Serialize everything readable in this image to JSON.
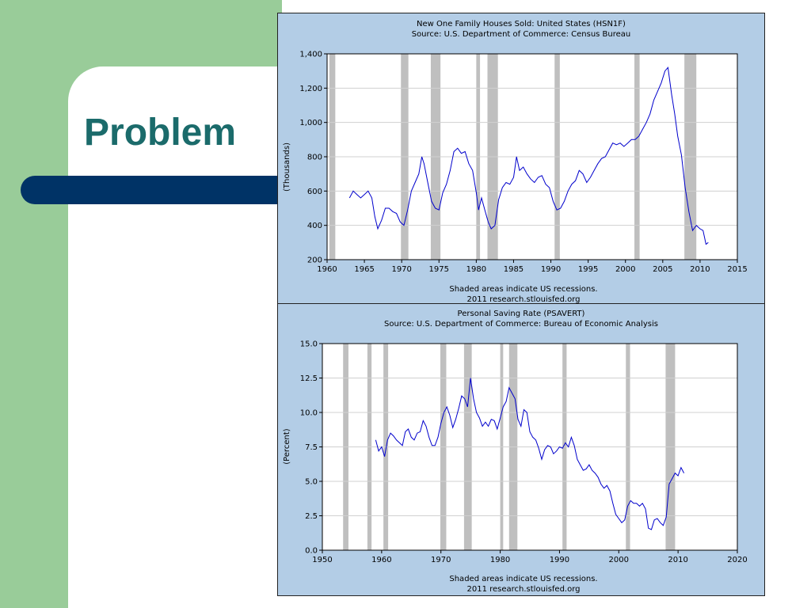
{
  "slide": {
    "title": "Problem"
  },
  "colors": {
    "left_band": "#99cc99",
    "accent_bar": "#003366",
    "title": "#1b6b6b",
    "chart_bg": "#b3cde6",
    "line": "#0000cc",
    "recession": "#bfbfbf"
  },
  "chart_data": [
    {
      "type": "line",
      "title": "New One Family Houses Sold: United States (HSN1F)",
      "subtitle": "Source: U.S. Department of Commerce: Census Bureau",
      "xlabel": "",
      "ylabel": "(Thousands)",
      "xlim": [
        1960,
        2015
      ],
      "ylim": [
        200,
        1400
      ],
      "xticks": [
        "1960",
        "1965",
        "1970",
        "1975",
        "1980",
        "1985",
        "1990",
        "1995",
        "2000",
        "2005",
        "2010",
        "2015"
      ],
      "yticks": [
        "200",
        "400",
        "600",
        "800",
        "1,000",
        "1,200",
        "1,400"
      ],
      "grid": true,
      "recessions": [
        [
          1960.3,
          1961.1
        ],
        [
          1969.9,
          1970.9
        ],
        [
          1973.9,
          1975.2
        ],
        [
          1980.0,
          1980.5
        ],
        [
          1981.5,
          1982.9
        ],
        [
          1990.5,
          1991.2
        ],
        [
          2001.2,
          2001.9
        ],
        [
          2007.9,
          2009.5
        ]
      ],
      "series": [
        {
          "values": [
            [
              1963.0,
              560
            ],
            [
              1963.5,
              600
            ],
            [
              1964.0,
              580
            ],
            [
              1964.5,
              560
            ],
            [
              1965.0,
              580
            ],
            [
              1965.5,
              600
            ],
            [
              1966.0,
              560
            ],
            [
              1966.4,
              450
            ],
            [
              1966.8,
              380
            ],
            [
              1967.3,
              430
            ],
            [
              1967.8,
              500
            ],
            [
              1968.3,
              500
            ],
            [
              1968.8,
              480
            ],
            [
              1969.3,
              470
            ],
            [
              1969.8,
              420
            ],
            [
              1970.3,
              400
            ],
            [
              1970.8,
              490
            ],
            [
              1971.3,
              600
            ],
            [
              1971.8,
              650
            ],
            [
              1972.3,
              700
            ],
            [
              1972.7,
              800
            ],
            [
              1973.0,
              760
            ],
            [
              1973.5,
              650
            ],
            [
              1974.0,
              540
            ],
            [
              1974.5,
              500
            ],
            [
              1975.0,
              490
            ],
            [
              1975.5,
              590
            ],
            [
              1976.0,
              640
            ],
            [
              1976.5,
              720
            ],
            [
              1977.0,
              830
            ],
            [
              1977.5,
              850
            ],
            [
              1978.0,
              820
            ],
            [
              1978.5,
              830
            ],
            [
              1979.0,
              760
            ],
            [
              1979.5,
              720
            ],
            [
              1980.0,
              590
            ],
            [
              1980.3,
              490
            ],
            [
              1980.7,
              560
            ],
            [
              1981.2,
              480
            ],
            [
              1981.6,
              420
            ],
            [
              1982.0,
              380
            ],
            [
              1982.5,
              400
            ],
            [
              1983.0,
              550
            ],
            [
              1983.5,
              620
            ],
            [
              1984.0,
              650
            ],
            [
              1984.5,
              640
            ],
            [
              1985.0,
              680
            ],
            [
              1985.4,
              800
            ],
            [
              1985.8,
              720
            ],
            [
              1986.3,
              740
            ],
            [
              1986.8,
              700
            ],
            [
              1987.3,
              670
            ],
            [
              1987.8,
              650
            ],
            [
              1988.3,
              680
            ],
            [
              1988.8,
              690
            ],
            [
              1989.3,
              640
            ],
            [
              1989.8,
              620
            ],
            [
              1990.3,
              540
            ],
            [
              1990.8,
              490
            ],
            [
              1991.3,
              500
            ],
            [
              1991.8,
              540
            ],
            [
              1992.3,
              600
            ],
            [
              1992.8,
              640
            ],
            [
              1993.3,
              660
            ],
            [
              1993.8,
              720
            ],
            [
              1994.3,
              700
            ],
            [
              1994.8,
              650
            ],
            [
              1995.3,
              680
            ],
            [
              1995.8,
              720
            ],
            [
              1996.3,
              760
            ],
            [
              1996.8,
              790
            ],
            [
              1997.3,
              800
            ],
            [
              1997.8,
              840
            ],
            [
              1998.3,
              880
            ],
            [
              1998.8,
              870
            ],
            [
              1999.3,
              880
            ],
            [
              1999.8,
              860
            ],
            [
              2000.3,
              880
            ],
            [
              2000.8,
              900
            ],
            [
              2001.3,
              900
            ],
            [
              2001.8,
              920
            ],
            [
              2002.3,
              960
            ],
            [
              2002.8,
              1000
            ],
            [
              2003.3,
              1050
            ],
            [
              2003.8,
              1130
            ],
            [
              2004.3,
              1180
            ],
            [
              2004.8,
              1230
            ],
            [
              2005.3,
              1300
            ],
            [
              2005.7,
              1320
            ],
            [
              2006.2,
              1160
            ],
            [
              2006.6,
              1050
            ],
            [
              2007.0,
              920
            ],
            [
              2007.5,
              810
            ],
            [
              2008.0,
              620
            ],
            [
              2008.5,
              480
            ],
            [
              2009.0,
              370
            ],
            [
              2009.5,
              400
            ],
            [
              2010.0,
              380
            ],
            [
              2010.4,
              370
            ],
            [
              2010.8,
              290
            ],
            [
              2011.1,
              300
            ]
          ]
        }
      ],
      "annotations": [
        "Shaded areas indicate US recessions.",
        "2011 research.stlouisfed.org"
      ]
    },
    {
      "type": "line",
      "title": "Personal Saving Rate (PSAVERT)",
      "subtitle": "Source: U.S. Department of Commerce: Bureau of Economic Analysis",
      "xlabel": "",
      "ylabel": "(Percent)",
      "xlim": [
        1950,
        2020
      ],
      "ylim": [
        0,
        15
      ],
      "xticks": [
        "1950",
        "1960",
        "1970",
        "1980",
        "1990",
        "2000",
        "2010",
        "2020"
      ],
      "yticks": [
        "0.0",
        "2.5",
        "5.0",
        "7.5",
        "10.0",
        "12.5",
        "15.0"
      ],
      "grid": true,
      "recessions": [
        [
          1953.5,
          1954.4
        ],
        [
          1957.6,
          1958.3
        ],
        [
          1960.3,
          1961.1
        ],
        [
          1969.9,
          1970.9
        ],
        [
          1973.9,
          1975.2
        ],
        [
          1980.0,
          1980.5
        ],
        [
          1981.5,
          1982.9
        ],
        [
          1990.5,
          1991.2
        ],
        [
          2001.2,
          2001.9
        ],
        [
          2007.9,
          2009.5
        ]
      ],
      "series": [
        {
          "values": [
            [
              1959.0,
              8.0
            ],
            [
              1959.5,
              7.2
            ],
            [
              1960.0,
              7.5
            ],
            [
              1960.5,
              6.8
            ],
            [
              1961.0,
              8.0
            ],
            [
              1961.5,
              8.5
            ],
            [
              1962.0,
              8.3
            ],
            [
              1962.5,
              8.0
            ],
            [
              1963.0,
              7.8
            ],
            [
              1963.5,
              7.6
            ],
            [
              1964.0,
              8.6
            ],
            [
              1964.5,
              8.8
            ],
            [
              1965.0,
              8.2
            ],
            [
              1965.5,
              8.0
            ],
            [
              1966.0,
              8.5
            ],
            [
              1966.5,
              8.6
            ],
            [
              1967.0,
              9.4
            ],
            [
              1967.5,
              9.0
            ],
            [
              1968.0,
              8.2
            ],
            [
              1968.5,
              7.6
            ],
            [
              1969.0,
              7.6
            ],
            [
              1969.5,
              8.2
            ],
            [
              1970.0,
              9.2
            ],
            [
              1970.5,
              10.0
            ],
            [
              1971.0,
              10.4
            ],
            [
              1971.5,
              9.8
            ],
            [
              1972.0,
              8.9
            ],
            [
              1972.5,
              9.5
            ],
            [
              1973.0,
              10.3
            ],
            [
              1973.5,
              11.2
            ],
            [
              1974.0,
              11.0
            ],
            [
              1974.5,
              10.4
            ],
            [
              1975.0,
              12.5
            ],
            [
              1975.5,
              11.0
            ],
            [
              1976.0,
              10.0
            ],
            [
              1976.5,
              9.6
            ],
            [
              1977.0,
              9.0
            ],
            [
              1977.5,
              9.3
            ],
            [
              1978.0,
              9.0
            ],
            [
              1978.5,
              9.5
            ],
            [
              1979.0,
              9.4
            ],
            [
              1979.5,
              8.8
            ],
            [
              1980.0,
              9.6
            ],
            [
              1980.5,
              10.4
            ],
            [
              1981.0,
              10.8
            ],
            [
              1981.5,
              11.8
            ],
            [
              1982.0,
              11.4
            ],
            [
              1982.5,
              11.0
            ],
            [
              1983.0,
              9.5
            ],
            [
              1983.5,
              9.0
            ],
            [
              1984.0,
              10.2
            ],
            [
              1984.5,
              10.0
            ],
            [
              1985.0,
              8.6
            ],
            [
              1985.5,
              8.2
            ],
            [
              1986.0,
              8.0
            ],
            [
              1986.5,
              7.4
            ],
            [
              1987.0,
              6.6
            ],
            [
              1987.5,
              7.3
            ],
            [
              1988.0,
              7.6
            ],
            [
              1988.5,
              7.5
            ],
            [
              1989.0,
              7.0
            ],
            [
              1989.5,
              7.2
            ],
            [
              1990.0,
              7.5
            ],
            [
              1990.5,
              7.4
            ],
            [
              1991.0,
              7.8
            ],
            [
              1991.5,
              7.5
            ],
            [
              1992.0,
              8.2
            ],
            [
              1992.5,
              7.6
            ],
            [
              1993.0,
              6.6
            ],
            [
              1993.5,
              6.2
            ],
            [
              1994.0,
              5.8
            ],
            [
              1994.5,
              5.9
            ],
            [
              1995.0,
              6.2
            ],
            [
              1995.5,
              5.8
            ],
            [
              1996.0,
              5.6
            ],
            [
              1996.5,
              5.3
            ],
            [
              1997.0,
              4.8
            ],
            [
              1997.5,
              4.5
            ],
            [
              1998.0,
              4.7
            ],
            [
              1998.5,
              4.3
            ],
            [
              1999.0,
              3.4
            ],
            [
              1999.5,
              2.6
            ],
            [
              2000.0,
              2.3
            ],
            [
              2000.5,
              2.0
            ],
            [
              2001.0,
              2.2
            ],
            [
              2001.5,
              3.2
            ],
            [
              2002.0,
              3.6
            ],
            [
              2002.5,
              3.4
            ],
            [
              2003.0,
              3.4
            ],
            [
              2003.5,
              3.2
            ],
            [
              2004.0,
              3.4
            ],
            [
              2004.5,
              3.0
            ],
            [
              2005.0,
              1.6
            ],
            [
              2005.5,
              1.5
            ],
            [
              2006.0,
              2.2
            ],
            [
              2006.5,
              2.3
            ],
            [
              2007.0,
              2.0
            ],
            [
              2007.5,
              1.8
            ],
            [
              2008.0,
              2.4
            ],
            [
              2008.5,
              4.8
            ],
            [
              2009.0,
              5.2
            ],
            [
              2009.5,
              5.6
            ],
            [
              2010.0,
              5.4
            ],
            [
              2010.5,
              6.0
            ],
            [
              2011.0,
              5.6
            ]
          ]
        }
      ],
      "annotations": [
        "Shaded areas indicate US recessions.",
        "2011 research.stlouisfed.org"
      ]
    }
  ]
}
